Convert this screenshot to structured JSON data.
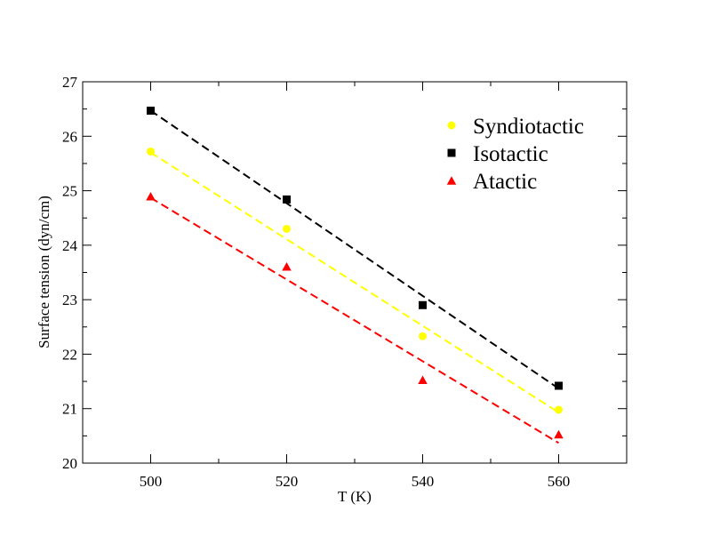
{
  "chart_data": {
    "type": "scatter",
    "title": "",
    "xlabel": "T (K)",
    "ylabel": "Surface  tension (dyn/cm)",
    "xlim": [
      490,
      570
    ],
    "ylim": [
      20,
      27
    ],
    "xticks": [
      500,
      520,
      540,
      560
    ],
    "yticks": [
      20,
      21,
      22,
      23,
      24,
      25,
      26,
      27
    ],
    "grid": false,
    "legend_position": "top-right",
    "series": [
      {
        "name": "Syndiotactic",
        "marker": "circle",
        "color": "#ffff00",
        "x": [
          500,
          520,
          540,
          560
        ],
        "y": [
          25.72,
          24.3,
          22.33,
          20.98
        ],
        "fit": {
          "x": [
            500,
            560
          ],
          "y": [
            25.7,
            20.93
          ]
        }
      },
      {
        "name": "Isotactic",
        "marker": "square",
        "color": "#000000",
        "x": [
          500,
          520,
          540,
          560
        ],
        "y": [
          26.47,
          24.84,
          22.9,
          21.42
        ],
        "fit": {
          "x": [
            500,
            560
          ],
          "y": [
            26.47,
            21.37
          ]
        }
      },
      {
        "name": "Atactic",
        "marker": "triangle",
        "color": "#ff0000",
        "x": [
          500,
          520,
          540,
          560
        ],
        "y": [
          24.9,
          23.61,
          21.53,
          20.53
        ],
        "fit": {
          "x": [
            500,
            560
          ],
          "y": [
            24.87,
            20.37
          ]
        }
      }
    ]
  }
}
